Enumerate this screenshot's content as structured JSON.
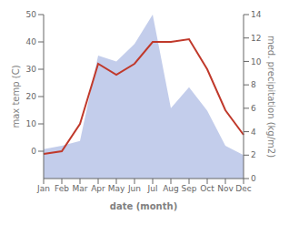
{
  "chart_data": {
    "type": "line",
    "xlabel": "date (month)",
    "ylabel": "max temp (C)",
    "y2label": "med. precipitation (kg/m2)",
    "categories": [
      "Jan",
      "Feb",
      "Mar",
      "Apr",
      "May",
      "Jun",
      "Jul",
      "Aug",
      "Sep",
      "Oct",
      "Nov",
      "Dec"
    ],
    "series": [
      {
        "type": "area",
        "axis": "y2",
        "color": "#b8c4e8",
        "values": [
          2.5,
          2.8,
          3.2,
          10.5,
          10.0,
          11.5,
          14.0,
          6.0,
          7.8,
          5.8,
          2.8,
          2.0
        ]
      },
      {
        "type": "line",
        "color": "#c0392b",
        "values": [
          -1,
          0,
          10,
          32,
          28,
          32,
          40,
          40,
          41,
          30,
          15,
          6
        ]
      }
    ],
    "ylim": [
      -10,
      50
    ],
    "yticks": [
      0,
      10,
      20,
      30,
      40,
      50
    ],
    "y2lim": [
      0,
      14
    ],
    "y2ticks": [
      0,
      2,
      4,
      6,
      8,
      10,
      12,
      14
    ],
    "grid": false
  }
}
